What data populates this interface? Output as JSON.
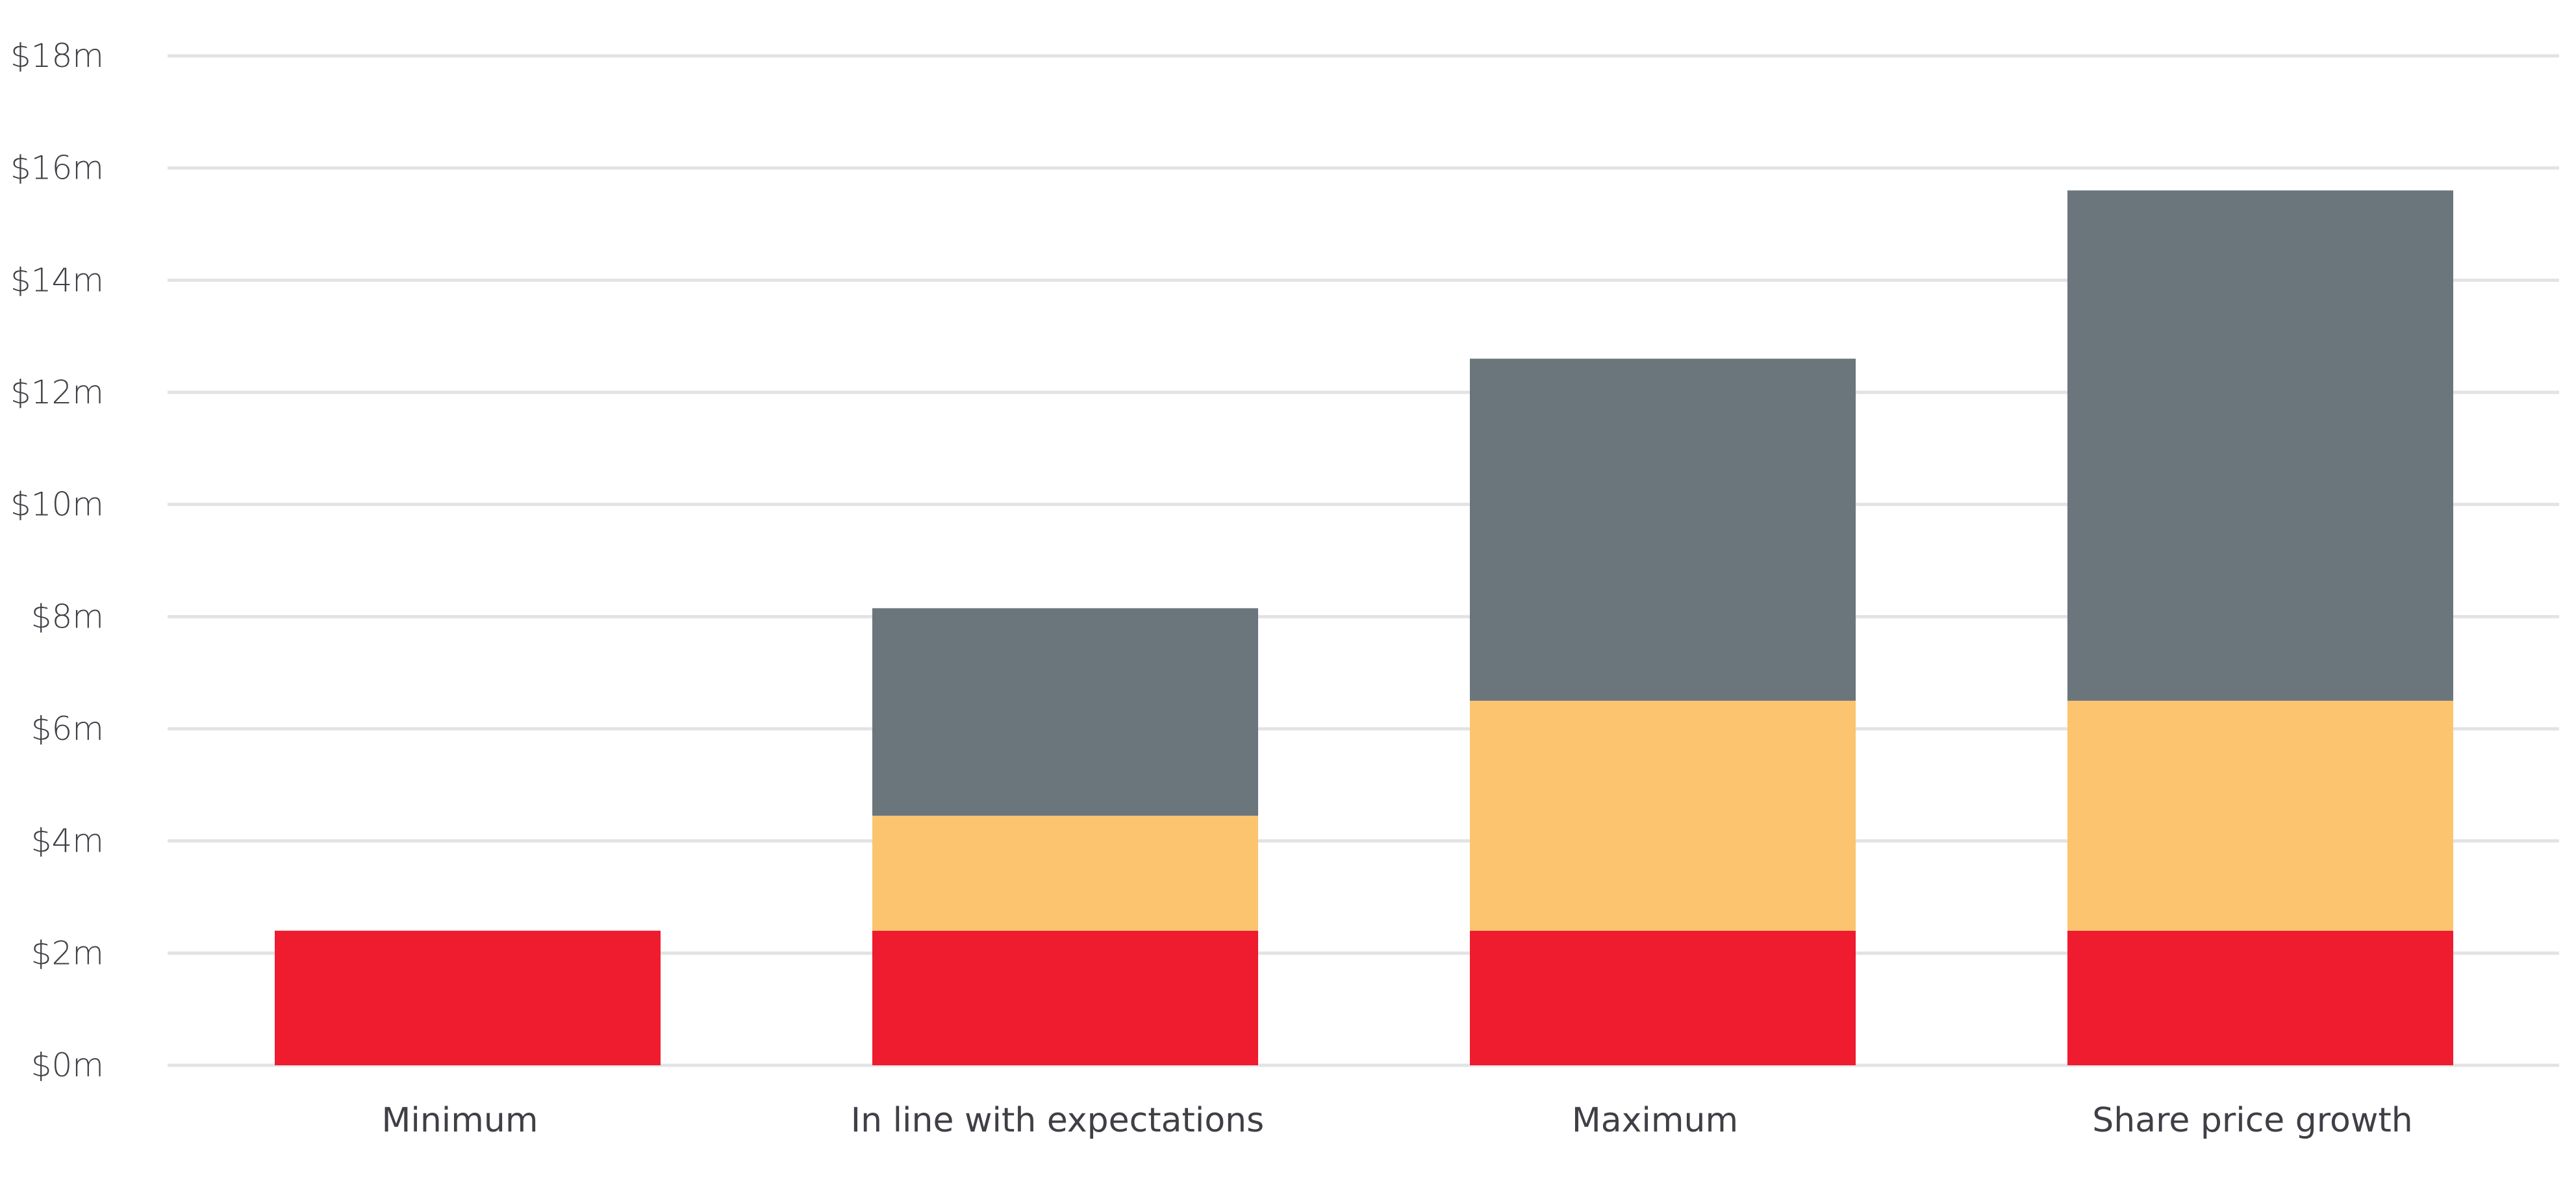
{
  "chart_data": {
    "type": "bar",
    "stacked": true,
    "categories": [
      "Minimum",
      "In line with expectations",
      "Maximum",
      "Share price growth"
    ],
    "series": [
      {
        "color": "#ee1c2e",
        "values": [
          2.4,
          2.4,
          2.4,
          2.4
        ]
      },
      {
        "color": "#fdc46f",
        "values": [
          0,
          2.05,
          4.1,
          4.1
        ]
      },
      {
        "color": "#6b757c",
        "values": [
          0,
          3.7,
          6.1,
          9.1
        ]
      }
    ],
    "yticks": [
      0,
      2,
      4,
      6,
      8,
      10,
      12,
      14,
      16,
      18
    ],
    "ytick_labels": [
      "$0m",
      "$2m",
      "$4m",
      "$6m",
      "$8m",
      "$10m",
      "$12m",
      "$14m",
      "$16m",
      "$18m"
    ],
    "ylim": [
      0,
      18
    ],
    "grid": true,
    "legend": "none",
    "title": "",
    "xlabel": "",
    "ylabel": ""
  }
}
